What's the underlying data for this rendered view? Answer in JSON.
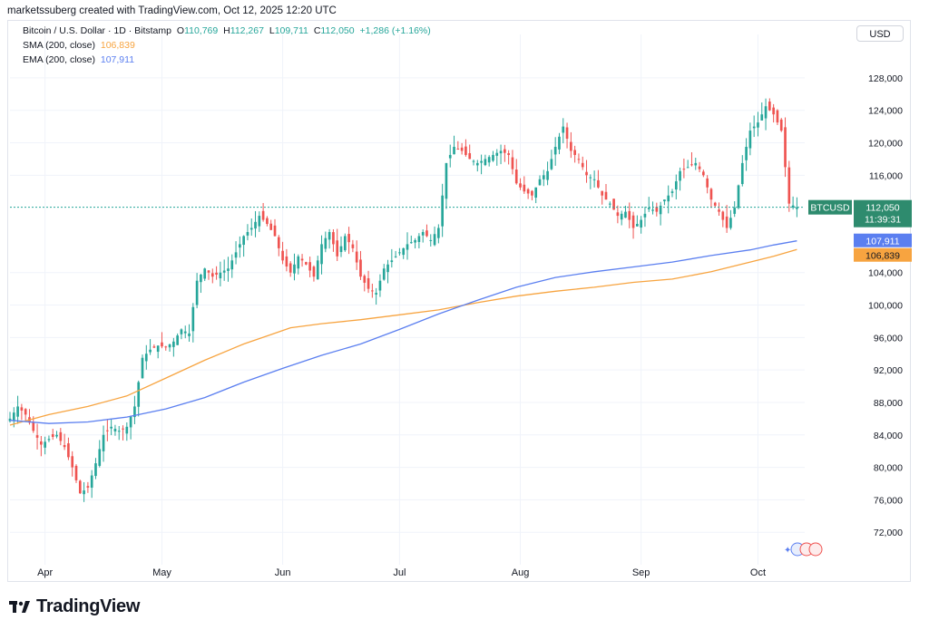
{
  "header": {
    "text": "marketssuberg created with TradingView.com, Oct 12, 2025 12:20 UTC"
  },
  "legend": {
    "symbol": "Bitcoin / U.S. Dollar · 1D · Bitstamp",
    "o_label": "O",
    "o_value": "110,769",
    "h_label": "H",
    "h_value": "112,267",
    "l_label": "L",
    "l_value": "109,711",
    "c_label": "C",
    "c_value": "112,050",
    "change": "+1,286 (+1.16%)",
    "sma_label": "SMA (200, close)",
    "sma_value": "106,839",
    "ema_label": "EMA (200, close)",
    "ema_value": "107,911"
  },
  "currency_button": "USD",
  "price_labels": {
    "symbol": "BTCUSD",
    "price": "112,050",
    "countdown": "11:39:31",
    "ema": "107,911",
    "sma": "106,839"
  },
  "colors": {
    "up": "#26a69a",
    "down": "#ef5350",
    "sma": "#f7a440",
    "ema": "#5b7ff0",
    "tag": "#2e8b6e"
  },
  "brand": "TradingView",
  "chart_data": {
    "type": "candlestick",
    "y_axis": {
      "min": 68000,
      "max": 130000,
      "ticks": [
        "72,000",
        "76,000",
        "80,000",
        "84,000",
        "88,000",
        "92,000",
        "96,000",
        "100,000",
        "104,000",
        "116,000",
        "120,000",
        "124,000",
        "128,000"
      ],
      "tick_values": [
        72000,
        76000,
        80000,
        84000,
        88000,
        92000,
        96000,
        100000,
        104000,
        116000,
        120000,
        124000,
        128000
      ]
    },
    "x_axis": {
      "labels": [
        "Apr",
        "May",
        "Jun",
        "Jul",
        "Aug",
        "Sep",
        "Oct"
      ],
      "label_days": [
        9,
        39,
        70,
        100,
        131,
        162,
        192
      ]
    },
    "series_close": [
      [
        0,
        86000
      ],
      [
        2,
        87500
      ],
      [
        4,
        86500
      ],
      [
        6,
        84500
      ],
      [
        8,
        82800
      ],
      [
        10,
        83500
      ],
      [
        12,
        84000
      ],
      [
        14,
        82500
      ],
      [
        16,
        80000
      ],
      [
        18,
        76800
      ],
      [
        20,
        77500
      ],
      [
        22,
        80500
      ],
      [
        24,
        84000
      ],
      [
        26,
        85000
      ],
      [
        28,
        84500
      ],
      [
        30,
        85000
      ],
      [
        32,
        87500
      ],
      [
        34,
        93500
      ],
      [
        36,
        94500
      ],
      [
        38,
        95000
      ],
      [
        40,
        94800
      ],
      [
        42,
        95500
      ],
      [
        44,
        97000
      ],
      [
        46,
        96500
      ],
      [
        48,
        103000
      ],
      [
        50,
        104500
      ],
      [
        52,
        103500
      ],
      [
        54,
        104000
      ],
      [
        56,
        104500
      ],
      [
        58,
        106500
      ],
      [
        60,
        108500
      ],
      [
        62,
        109500
      ],
      [
        64,
        111000
      ],
      [
        66,
        110000
      ],
      [
        68,
        108500
      ],
      [
        70,
        105500
      ],
      [
        72,
        104000
      ],
      [
        74,
        106000
      ],
      [
        76,
        105000
      ],
      [
        78,
        103500
      ],
      [
        80,
        107500
      ],
      [
        82,
        109000
      ],
      [
        84,
        106000
      ],
      [
        86,
        108500
      ],
      [
        88,
        107000
      ],
      [
        90,
        103500
      ],
      [
        92,
        102000
      ],
      [
        94,
        101500
      ],
      [
        96,
        104500
      ],
      [
        98,
        105500
      ],
      [
        100,
        106500
      ],
      [
        102,
        107500
      ],
      [
        104,
        108000
      ],
      [
        106,
        109000
      ],
      [
        108,
        108000
      ],
      [
        110,
        109500
      ],
      [
        112,
        117500
      ],
      [
        114,
        119500
      ],
      [
        116,
        119000
      ],
      [
        118,
        118000
      ],
      [
        120,
        117500
      ],
      [
        122,
        118000
      ],
      [
        124,
        118500
      ],
      [
        126,
        119000
      ],
      [
        128,
        118500
      ],
      [
        130,
        115000
      ],
      [
        132,
        114000
      ],
      [
        134,
        113500
      ],
      [
        136,
        115500
      ],
      [
        138,
        116500
      ],
      [
        140,
        119500
      ],
      [
        142,
        122000
      ],
      [
        144,
        119000
      ],
      [
        146,
        118000
      ],
      [
        148,
        116000
      ],
      [
        150,
        115500
      ],
      [
        152,
        113500
      ],
      [
        154,
        112500
      ],
      [
        156,
        111000
      ],
      [
        158,
        111500
      ],
      [
        160,
        109500
      ],
      [
        162,
        110500
      ],
      [
        164,
        112000
      ],
      [
        166,
        111500
      ],
      [
        168,
        113000
      ],
      [
        170,
        114000
      ],
      [
        172,
        116500
      ],
      [
        174,
        117000
      ],
      [
        176,
        117500
      ],
      [
        178,
        116000
      ],
      [
        180,
        113000
      ],
      [
        182,
        111500
      ],
      [
        184,
        109500
      ],
      [
        186,
        112000
      ],
      [
        188,
        117500
      ],
      [
        190,
        121500
      ],
      [
        192,
        122500
      ],
      [
        194,
        124500
      ],
      [
        196,
        123500
      ],
      [
        198,
        121500
      ],
      [
        200,
        112500
      ],
      [
        202,
        112050
      ]
    ],
    "sma_200": [
      [
        0,
        85200
      ],
      [
        10,
        86500
      ],
      [
        20,
        87500
      ],
      [
        30,
        88800
      ],
      [
        40,
        91000
      ],
      [
        50,
        93200
      ],
      [
        60,
        95200
      ],
      [
        66,
        96200
      ],
      [
        72,
        97200
      ],
      [
        80,
        97700
      ],
      [
        90,
        98200
      ],
      [
        100,
        98800
      ],
      [
        110,
        99400
      ],
      [
        120,
        100300
      ],
      [
        130,
        101100
      ],
      [
        140,
        101700
      ],
      [
        150,
        102200
      ],
      [
        160,
        102800
      ],
      [
        170,
        103200
      ],
      [
        180,
        104100
      ],
      [
        190,
        105300
      ],
      [
        196,
        106000
      ],
      [
        202,
        106839
      ]
    ],
    "ema_200": [
      [
        0,
        85800
      ],
      [
        10,
        85400
      ],
      [
        20,
        85600
      ],
      [
        30,
        86200
      ],
      [
        40,
        87200
      ],
      [
        50,
        88600
      ],
      [
        60,
        90500
      ],
      [
        70,
        92200
      ],
      [
        80,
        93800
      ],
      [
        90,
        95200
      ],
      [
        100,
        97000
      ],
      [
        110,
        98900
      ],
      [
        120,
        100600
      ],
      [
        130,
        102200
      ],
      [
        140,
        103400
      ],
      [
        150,
        104100
      ],
      [
        160,
        104700
      ],
      [
        170,
        105300
      ],
      [
        180,
        106100
      ],
      [
        190,
        106800
      ],
      [
        196,
        107400
      ],
      [
        202,
        107911
      ]
    ]
  }
}
